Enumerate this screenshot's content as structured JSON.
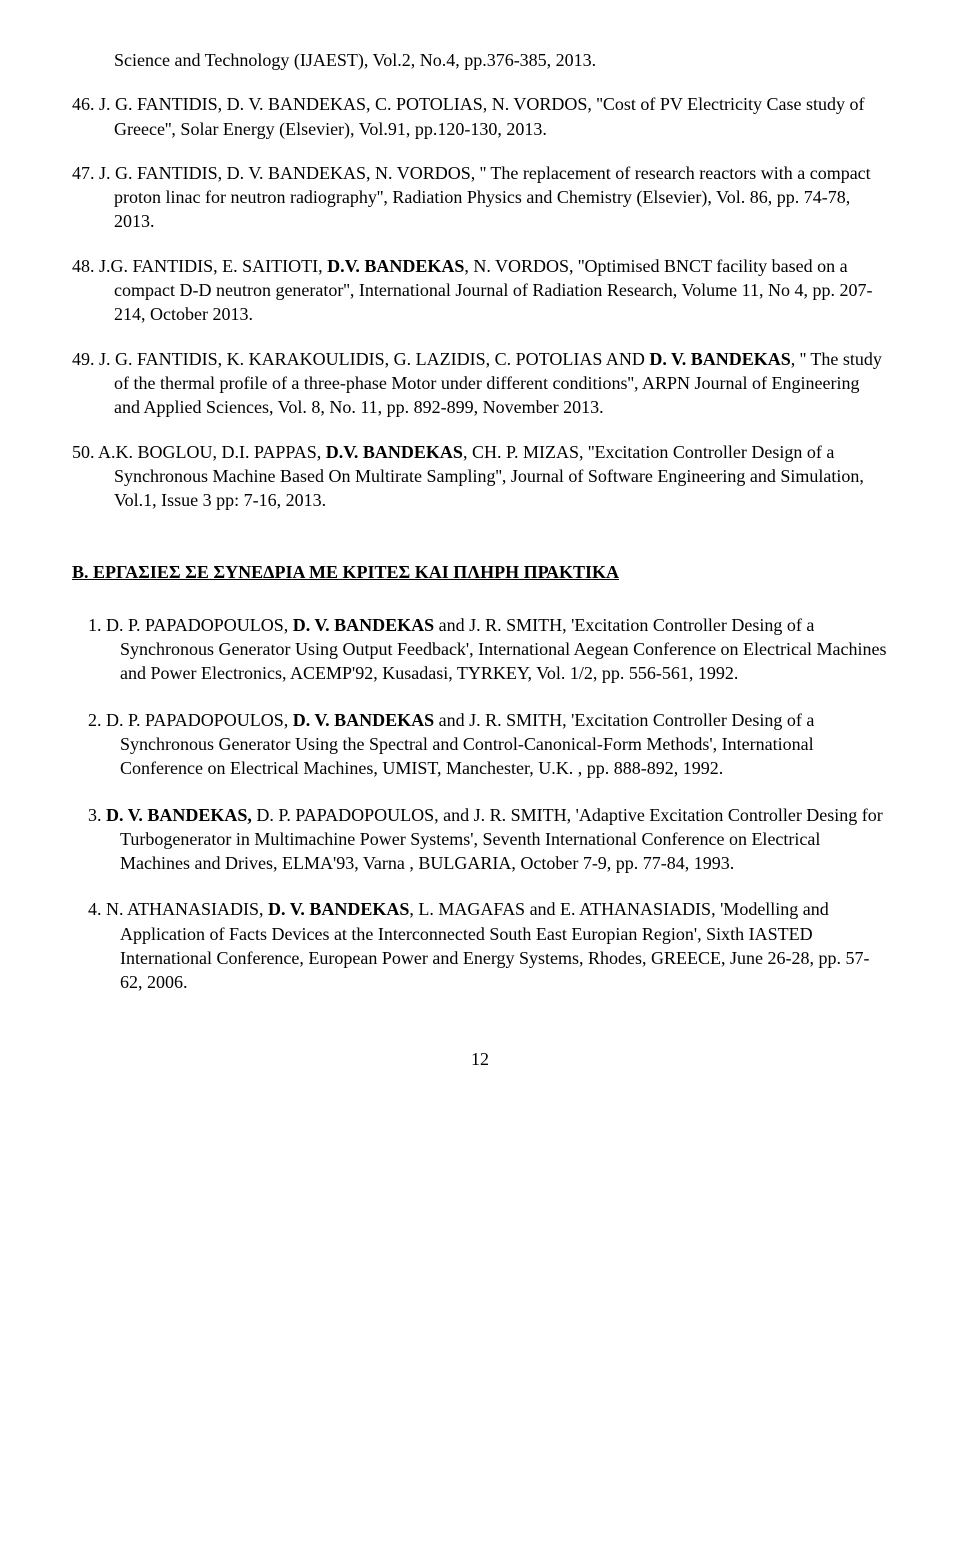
{
  "refs_a": [
    {
      "html": "Science and Technology (IJAEST), Vol.2, No.4, pp.376-385, 2013."
    },
    {
      "html": "46. J. G. FANTIDIS, D. V. BANDEKAS, C. POTOLIAS, N. VORDOS, ''Cost of PV Electricity Case study of Greece'', Solar Energy (Elsevier), Vol.91, pp.120-130, 2013."
    },
    {
      "html": "47. J. G. FANTIDIS, D. V. BANDEKAS, N. VORDOS, '' The replacement of research reactors with a compact proton linac for neutron radiography'', Radiation Physics and Chemistry (Elsevier), Vol. 86, pp. 74-78, 2013."
    },
    {
      "html": "48. J.G. FANTIDIS, E. SAITIOTI, <b>D.V. BANDEKAS</b>, N. VORDOS, ''Optimised BNCT facility based on a compact D-D neutron generator'', International Journal of Radiation Research, Volume 11, No 4, pp. 207-214, October 2013."
    },
    {
      "html": "49. J. G. FANTIDIS, K. KARAKOULIDIS, G. LAZIDIS, C. POTOLIAS AND <b>D. V. BANDEKAS</b>, '' The study of the thermal profile of a three-phase Motor under different conditions'', ARPN Journal of Engineering and Applied Sciences, Vol. 8, No. 11, pp. 892-899, November 2013."
    },
    {
      "html": "50. A.K. BOGLOU, D.I. PAPPAS,  <b>D.V. BANDEKAS</b>, CH. P. MIZAS, ''Excitation Controller Design of a Synchronous Machine Based On Multirate Sampling'', Journal of Software Engineering and Simulation, Vol.1, Issue 3 pp: 7-16, 2013."
    }
  ],
  "section_b_heading": "Β.  ΕΡΓΑΣΙΕΣ ΣΕ ΣΥΝΕΔΡΙΑ ΜΕ ΚΡΙΤΕΣ ΚΑΙ ΠΛΗΡΗ ΠΡΑΚΤΙΚΑ",
  "refs_b": [
    {
      "html": "1.  D. P. PAPADOPOULOS,  <b>D. V. BANDEKAS</b> and J. R. SMITH, 'Excitation Controller Desing of a Synchronous Generator Using  Output  Feedback', International Aegean Conference on  Electrical Machines and Power Electronics, ACEMP'92, Kusadasi,  TYRKEY, Vol. 1/2, pp. 556-561, 1992."
    },
    {
      "html": "2.  D. P. PAPADOPOULOS,  <b>D. V. BANDEKAS</b> and  J. R. SMITH, 'Excitation Controller Desing of a Synchronous Generator Using  the Spectral and Control-Canonical-Form   Methods',  International Conference on Electrical Machines, UMIST,  Manchester, U.K. , pp. 888-892, 1992."
    },
    {
      "html": "3.  <b>D. V. BANDEKAS,</b>  D. P. PAPADOPOULOS, and  J. R. SMITH, 'Adaptive Excitation  Controller Desing for Turbogenerator in  Multimachine Power Systems', Seventh International Conference  on Electrical Machines and Drives, ELMA'93, Varna , BULGARIA,  October 7-9,  pp.  77-84,  1993."
    },
    {
      "html": "4.   N. ATHANASIADIS, <b>D. V. BANDEKAS</b>, L. MAGAFAS and E. ATHANASIADIS, 'Modelling and Application of Facts Devices at the Interconnected South East Europian Region', Sixth IASTED International Conference, European Power and Energy Systems, Rhodes, GREECE, June 26-28, pp. 57- 62, 2006."
    }
  ],
  "page_number": "12"
}
